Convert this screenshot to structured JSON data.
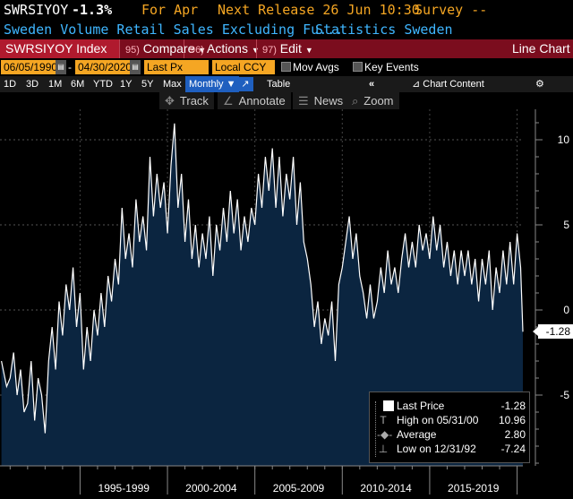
{
  "header": {
    "ticker": "SWRSIYOY",
    "change": "-1.3%",
    "period": "For Apr",
    "next_release": "Next Release 26 Jun 10:30",
    "survey": "Survey --"
  },
  "security": {
    "name": "Sweden Volume Retail Sales Excluding Fu...",
    "source": "Statistics Sweden"
  },
  "toolbar": {
    "index_label": "SWRSIYOY Index",
    "compare_num": "95)",
    "compare_label": "Compare",
    "actions_num": "96)",
    "actions_label": "Actions",
    "edit_num": "97)",
    "edit_label": "Edit",
    "chart_type": "Line Chart"
  },
  "controls": {
    "start_date": "06/05/1990",
    "end_date": "04/30/2020",
    "field": "Last Px",
    "currency": "Local CCY",
    "mov_avgs": "Mov Avgs",
    "key_events": "Key Events"
  },
  "periods": {
    "items": [
      "1D",
      "3D",
      "1M",
      "6M",
      "YTD",
      "1Y",
      "5Y",
      "Max"
    ],
    "frequency": "Monthly",
    "table": "Table",
    "chart_content": "Chart Content"
  },
  "chart_tools": {
    "track": "Track",
    "annotate": "Annotate",
    "news": "News",
    "zoom": "Zoom"
  },
  "legend": {
    "last_price_label": "Last Price",
    "last_price_value": "-1.28",
    "high_label": "High on 05/31/00",
    "high_value": "10.96",
    "average_label": "Average",
    "average_value": "2.80",
    "low_label": "Low on 12/31/92",
    "low_value": "-7.24"
  },
  "last_tag": "-1.28",
  "colors": {
    "amber": "#f5a623",
    "blue_text": "#3fb6ff",
    "action_bar": "#7b0d1e",
    "area_fill": "#0b2540",
    "line": "#ffffff"
  },
  "chart_data": {
    "type": "area",
    "title": "",
    "xlabel": "",
    "ylabel": "",
    "x_tick_labels": [
      "1995-1999",
      "2000-2004",
      "2005-2009",
      "2010-2014",
      "2015-2019"
    ],
    "y_ticks": [
      -5,
      0,
      5,
      10
    ],
    "ylim": [
      -9,
      12
    ],
    "xlim": [
      1990.42,
      2020.33
    ],
    "last_value": -1.28,
    "series": [
      {
        "values": [
          [
            1990.5,
            -3.0
          ],
          [
            1990.8,
            -4.5
          ],
          [
            1991.0,
            -4.0
          ],
          [
            1991.2,
            -2.5
          ],
          [
            1991.4,
            -5.0
          ],
          [
            1991.6,
            -3.5
          ],
          [
            1991.8,
            -6.0
          ],
          [
            1992.0,
            -5.5
          ],
          [
            1992.2,
            -3.0
          ],
          [
            1992.4,
            -6.5
          ],
          [
            1992.6,
            -4.0
          ],
          [
            1992.8,
            -5.0
          ],
          [
            1993.0,
            -7.24
          ],
          [
            1993.2,
            -3.0
          ],
          [
            1993.4,
            -1.0
          ],
          [
            1993.6,
            -3.5
          ],
          [
            1993.8,
            0.5
          ],
          [
            1994.0,
            -1.5
          ],
          [
            1994.2,
            1.5
          ],
          [
            1994.4,
            0.0
          ],
          [
            1994.6,
            2.5
          ],
          [
            1994.8,
            -1.0
          ],
          [
            1995.0,
            1.0
          ],
          [
            1995.2,
            -3.5
          ],
          [
            1995.4,
            -1.0
          ],
          [
            1995.6,
            -3.0
          ],
          [
            1995.8,
            0.0
          ],
          [
            1996.0,
            -1.5
          ],
          [
            1996.2,
            1.0
          ],
          [
            1996.4,
            -1.0
          ],
          [
            1996.6,
            2.0
          ],
          [
            1996.8,
            0.5
          ],
          [
            1997.0,
            3.0
          ],
          [
            1997.2,
            1.5
          ],
          [
            1997.4,
            6.0
          ],
          [
            1997.6,
            3.0
          ],
          [
            1997.8,
            4.5
          ],
          [
            1998.0,
            2.5
          ],
          [
            1998.2,
            6.5
          ],
          [
            1998.4,
            4.0
          ],
          [
            1998.6,
            5.5
          ],
          [
            1998.8,
            3.5
          ],
          [
            1999.0,
            9.0
          ],
          [
            1999.2,
            5.5
          ],
          [
            1999.4,
            8.0
          ],
          [
            1999.6,
            6.0
          ],
          [
            1999.8,
            7.5
          ],
          [
            2000.0,
            4.5
          ],
          [
            2000.2,
            8.5
          ],
          [
            2000.4,
            10.96
          ],
          [
            2000.6,
            6.0
          ],
          [
            2000.8,
            8.0
          ],
          [
            2001.0,
            4.0
          ],
          [
            2001.2,
            6.5
          ],
          [
            2001.4,
            3.0
          ],
          [
            2001.6,
            5.0
          ],
          [
            2001.8,
            2.5
          ],
          [
            2002.0,
            4.5
          ],
          [
            2002.2,
            3.0
          ],
          [
            2002.4,
            5.5
          ],
          [
            2002.6,
            2.0
          ],
          [
            2002.8,
            5.0
          ],
          [
            2003.0,
            3.5
          ],
          [
            2003.2,
            6.0
          ],
          [
            2003.4,
            4.0
          ],
          [
            2003.6,
            7.0
          ],
          [
            2003.8,
            4.5
          ],
          [
            2004.0,
            6.5
          ],
          [
            2004.2,
            3.5
          ],
          [
            2004.4,
            5.5
          ],
          [
            2004.6,
            4.0
          ],
          [
            2004.8,
            6.0
          ],
          [
            2005.0,
            5.0
          ],
          [
            2005.2,
            8.0
          ],
          [
            2005.4,
            6.0
          ],
          [
            2005.6,
            9.0
          ],
          [
            2005.8,
            7.0
          ],
          [
            2006.0,
            9.5
          ],
          [
            2006.2,
            6.0
          ],
          [
            2006.4,
            9.0
          ],
          [
            2006.6,
            5.5
          ],
          [
            2006.8,
            8.0
          ],
          [
            2007.0,
            6.5
          ],
          [
            2007.2,
            9.0
          ],
          [
            2007.4,
            5.0
          ],
          [
            2007.6,
            7.5
          ],
          [
            2007.8,
            4.0
          ],
          [
            2008.0,
            3.0
          ],
          [
            2008.2,
            1.5
          ],
          [
            2008.4,
            -1.0
          ],
          [
            2008.6,
            0.5
          ],
          [
            2008.8,
            -2.0
          ],
          [
            2009.0,
            -0.5
          ],
          [
            2009.2,
            -1.5
          ],
          [
            2009.4,
            0.5
          ],
          [
            2009.6,
            -3.0
          ],
          [
            2009.8,
            1.5
          ],
          [
            2010.0,
            2.5
          ],
          [
            2010.2,
            4.0
          ],
          [
            2010.4,
            5.5
          ],
          [
            2010.6,
            3.0
          ],
          [
            2010.8,
            4.5
          ],
          [
            2011.0,
            2.0
          ],
          [
            2011.2,
            1.0
          ],
          [
            2011.4,
            -0.5
          ],
          [
            2011.6,
            1.5
          ],
          [
            2011.8,
            -0.5
          ],
          [
            2012.0,
            0.5
          ],
          [
            2012.2,
            2.5
          ],
          [
            2012.4,
            1.0
          ],
          [
            2012.6,
            3.5
          ],
          [
            2012.8,
            1.5
          ],
          [
            2013.0,
            2.5
          ],
          [
            2013.2,
            1.0
          ],
          [
            2013.4,
            3.0
          ],
          [
            2013.6,
            4.5
          ],
          [
            2013.8,
            2.5
          ],
          [
            2014.0,
            4.0
          ],
          [
            2014.2,
            2.5
          ],
          [
            2014.4,
            5.0
          ],
          [
            2014.6,
            3.5
          ],
          [
            2014.8,
            4.5
          ],
          [
            2015.0,
            3.0
          ],
          [
            2015.2,
            5.5
          ],
          [
            2015.4,
            3.5
          ],
          [
            2015.6,
            5.0
          ],
          [
            2015.8,
            2.5
          ],
          [
            2016.0,
            4.0
          ],
          [
            2016.2,
            2.0
          ],
          [
            2016.4,
            3.5
          ],
          [
            2016.6,
            1.5
          ],
          [
            2016.8,
            3.5
          ],
          [
            2017.0,
            2.0
          ],
          [
            2017.2,
            3.5
          ],
          [
            2017.4,
            1.5
          ],
          [
            2017.6,
            3.0
          ],
          [
            2017.8,
            0.5
          ],
          [
            2018.0,
            3.0
          ],
          [
            2018.2,
            1.5
          ],
          [
            2018.4,
            3.5
          ],
          [
            2018.6,
            0.0
          ],
          [
            2018.8,
            2.5
          ],
          [
            2019.0,
            1.0
          ],
          [
            2019.2,
            3.5
          ],
          [
            2019.4,
            1.5
          ],
          [
            2019.6,
            4.0
          ],
          [
            2019.8,
            1.5
          ],
          [
            2020.0,
            4.5
          ],
          [
            2020.2,
            2.5
          ],
          [
            2020.33,
            -1.28
          ]
        ]
      }
    ]
  }
}
